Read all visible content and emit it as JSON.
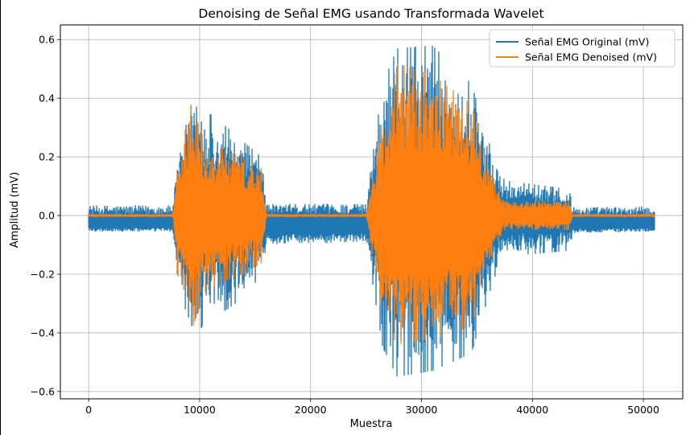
{
  "chart_data": {
    "type": "line",
    "title": "Denoising de Señal EMG usando Transformada Wavelet",
    "xlabel": "Muestra",
    "ylabel": "Amplitud (mV)",
    "xlim": [
      -2550,
      53550
    ],
    "ylim": [
      -0.625,
      0.65
    ],
    "x_ticks": [
      0,
      10000,
      20000,
      30000,
      40000,
      50000
    ],
    "x_tick_labels": [
      "0",
      "10000",
      "20000",
      "30000",
      "40000",
      "50000"
    ],
    "y_ticks": [
      -0.6,
      -0.4,
      -0.2,
      0.0,
      0.2,
      0.4,
      0.6
    ],
    "y_tick_labels": [
      "−0.6",
      "−0.4",
      "−0.2",
      "0.0",
      "0.2",
      "0.4",
      "0.6"
    ],
    "grid": true,
    "legend_position": "top-right",
    "n_samples": 51000,
    "series": [
      {
        "name": "Señal EMG Original (mV)",
        "color": "#1f77b4",
        "baseline_offset": -0.03,
        "baseline_noise": 0.025,
        "envelope": [
          {
            "x": 0,
            "y_max": 0.035,
            "y_min": -0.055
          },
          {
            "x": 7600,
            "y_max": 0.035,
            "y_min": -0.055
          },
          {
            "x": 8000,
            "y_max": 0.22,
            "y_min": -0.27
          },
          {
            "x": 9200,
            "y_max": 0.45,
            "y_min": -0.45
          },
          {
            "x": 10500,
            "y_max": 0.36,
            "y_min": -0.36
          },
          {
            "x": 12500,
            "y_max": 0.3,
            "y_min": -0.32
          },
          {
            "x": 14000,
            "y_max": 0.25,
            "y_min": -0.28
          },
          {
            "x": 15600,
            "y_max": 0.2,
            "y_min": -0.2
          },
          {
            "x": 16000,
            "y_max": 0.04,
            "y_min": -0.1
          },
          {
            "x": 25000,
            "y_max": 0.04,
            "y_min": -0.09
          },
          {
            "x": 26500,
            "y_max": 0.45,
            "y_min": -0.45
          },
          {
            "x": 27800,
            "y_max": 0.57,
            "y_min": -0.55
          },
          {
            "x": 31000,
            "y_max": 0.58,
            "y_min": -0.53
          },
          {
            "x": 34500,
            "y_max": 0.45,
            "y_min": -0.47
          },
          {
            "x": 36500,
            "y_max": 0.2,
            "y_min": -0.22
          },
          {
            "x": 37500,
            "y_max": 0.12,
            "y_min": -0.14
          },
          {
            "x": 43400,
            "y_max": 0.09,
            "y_min": -0.12
          },
          {
            "x": 43600,
            "y_max": 0.03,
            "y_min": -0.06
          },
          {
            "x": 51000,
            "y_max": 0.03,
            "y_min": -0.055
          }
        ]
      },
      {
        "name": "Señal EMG Denoised (mV)",
        "color": "#ff7f0e",
        "baseline_offset": 0.0,
        "baseline_noise": 0.004,
        "envelope": [
          {
            "x": 0,
            "y_max": 0.005,
            "y_min": -0.005
          },
          {
            "x": 7600,
            "y_max": 0.005,
            "y_min": -0.005
          },
          {
            "x": 8000,
            "y_max": 0.17,
            "y_min": -0.2
          },
          {
            "x": 9200,
            "y_max": 0.38,
            "y_min": -0.4
          },
          {
            "x": 10500,
            "y_max": 0.25,
            "y_min": -0.26
          },
          {
            "x": 12500,
            "y_max": 0.22,
            "y_min": -0.22
          },
          {
            "x": 14000,
            "y_max": 0.2,
            "y_min": -0.2
          },
          {
            "x": 15600,
            "y_max": 0.16,
            "y_min": -0.16
          },
          {
            "x": 16000,
            "y_max": 0.005,
            "y_min": -0.005
          },
          {
            "x": 25000,
            "y_max": 0.005,
            "y_min": -0.005
          },
          {
            "x": 26500,
            "y_max": 0.33,
            "y_min": -0.36
          },
          {
            "x": 27800,
            "y_max": 0.52,
            "y_min": -0.44
          },
          {
            "x": 31000,
            "y_max": 0.48,
            "y_min": -0.42
          },
          {
            "x": 34500,
            "y_max": 0.38,
            "y_min": -0.38
          },
          {
            "x": 36500,
            "y_max": 0.12,
            "y_min": -0.12
          },
          {
            "x": 37500,
            "y_max": 0.05,
            "y_min": -0.05
          },
          {
            "x": 43400,
            "y_max": 0.05,
            "y_min": -0.05
          },
          {
            "x": 43600,
            "y_max": 0.005,
            "y_min": -0.005
          },
          {
            "x": 51000,
            "y_max": 0.005,
            "y_min": -0.005
          }
        ]
      }
    ]
  }
}
